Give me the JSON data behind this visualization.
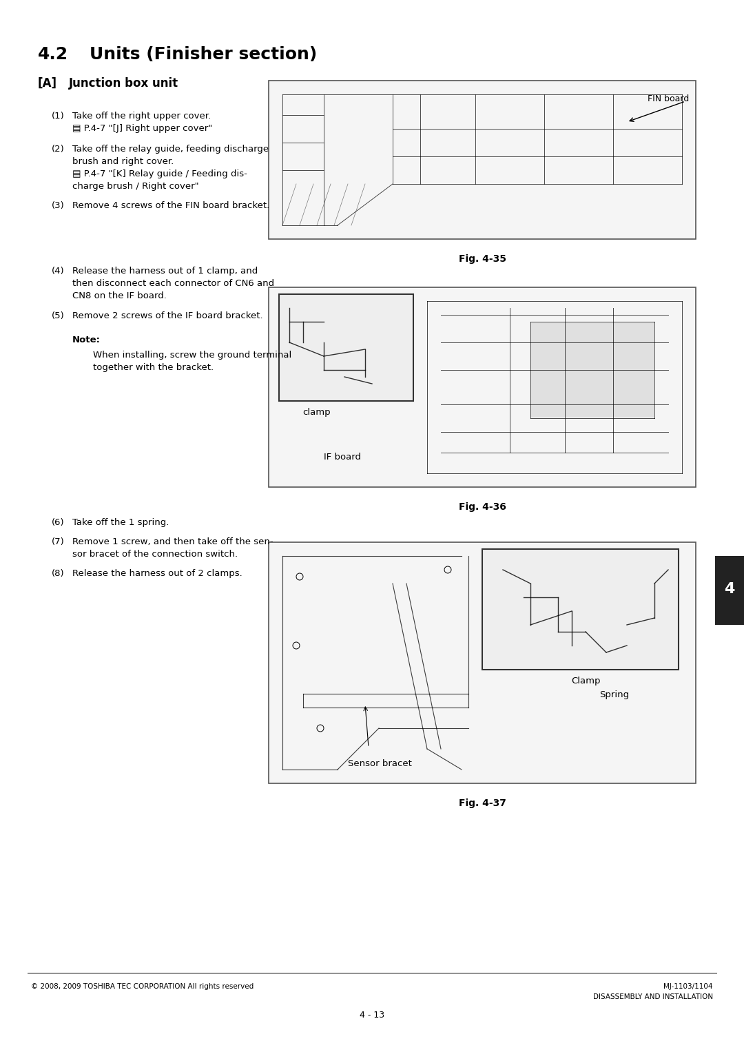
{
  "page_bg": "#ffffff",
  "section_title": "4.2  Units (Finisher section)",
  "subsection_title": "[A] Junction box unit",
  "right_tab_text": "4",
  "steps_block1": [
    {
      "num": "(1)",
      "text": "Take off the right upper cover.\n▤ P.4-7 \"[J] Right upper cover\""
    },
    {
      "num": "(2)",
      "text": "Take off the relay guide, feeding discharge\nbrush and right cover.\n▤ P.4-7 \"[K] Relay guide / Feeding dis-\ncharge brush / Right cover\""
    },
    {
      "num": "(3)",
      "text": "Remove 4 screws of the FIN board bracket."
    }
  ],
  "fig1_label": "FIN board",
  "fig1_caption": "Fig. 4-35",
  "steps_block2": [
    {
      "num": "(4)",
      "text": "Release the harness out of 1 clamp, and\nthen disconnect each connector of CN6 and\nCN8 on the IF board."
    },
    {
      "num": "(5)",
      "text": "Remove 2 screws of the IF board bracket."
    }
  ],
  "note_title": "Note:",
  "note_text": "When installing, screw the ground terminal\ntogether with the bracket.",
  "fig2_label1": "clamp",
  "fig2_label2": "IF board",
  "fig2_caption": "Fig. 4-36",
  "steps_block3": [
    {
      "num": "(6)",
      "text": "Take off the 1 spring."
    },
    {
      "num": "(7)",
      "text": "Remove 1 screw, and then take off the sen-\nsor bracet of the connection switch."
    },
    {
      "num": "(8)",
      "text": "Release the harness out of 2 clamps."
    }
  ],
  "fig3_label1": "Clamp",
  "fig3_label2": "Spring",
  "fig3_label3": "Sensor bracet",
  "fig3_caption": "Fig. 4-37",
  "footer_left": "© 2008, 2009 TOSHIBA TEC CORPORATION All rights reserved",
  "footer_right1": "MJ-1103/1104",
  "footer_right2": "DISASSEMBLY AND INSTALLATION",
  "page_number": "4 - 13",
  "body_font_size": 9.5,
  "small_font_size": 8.5
}
